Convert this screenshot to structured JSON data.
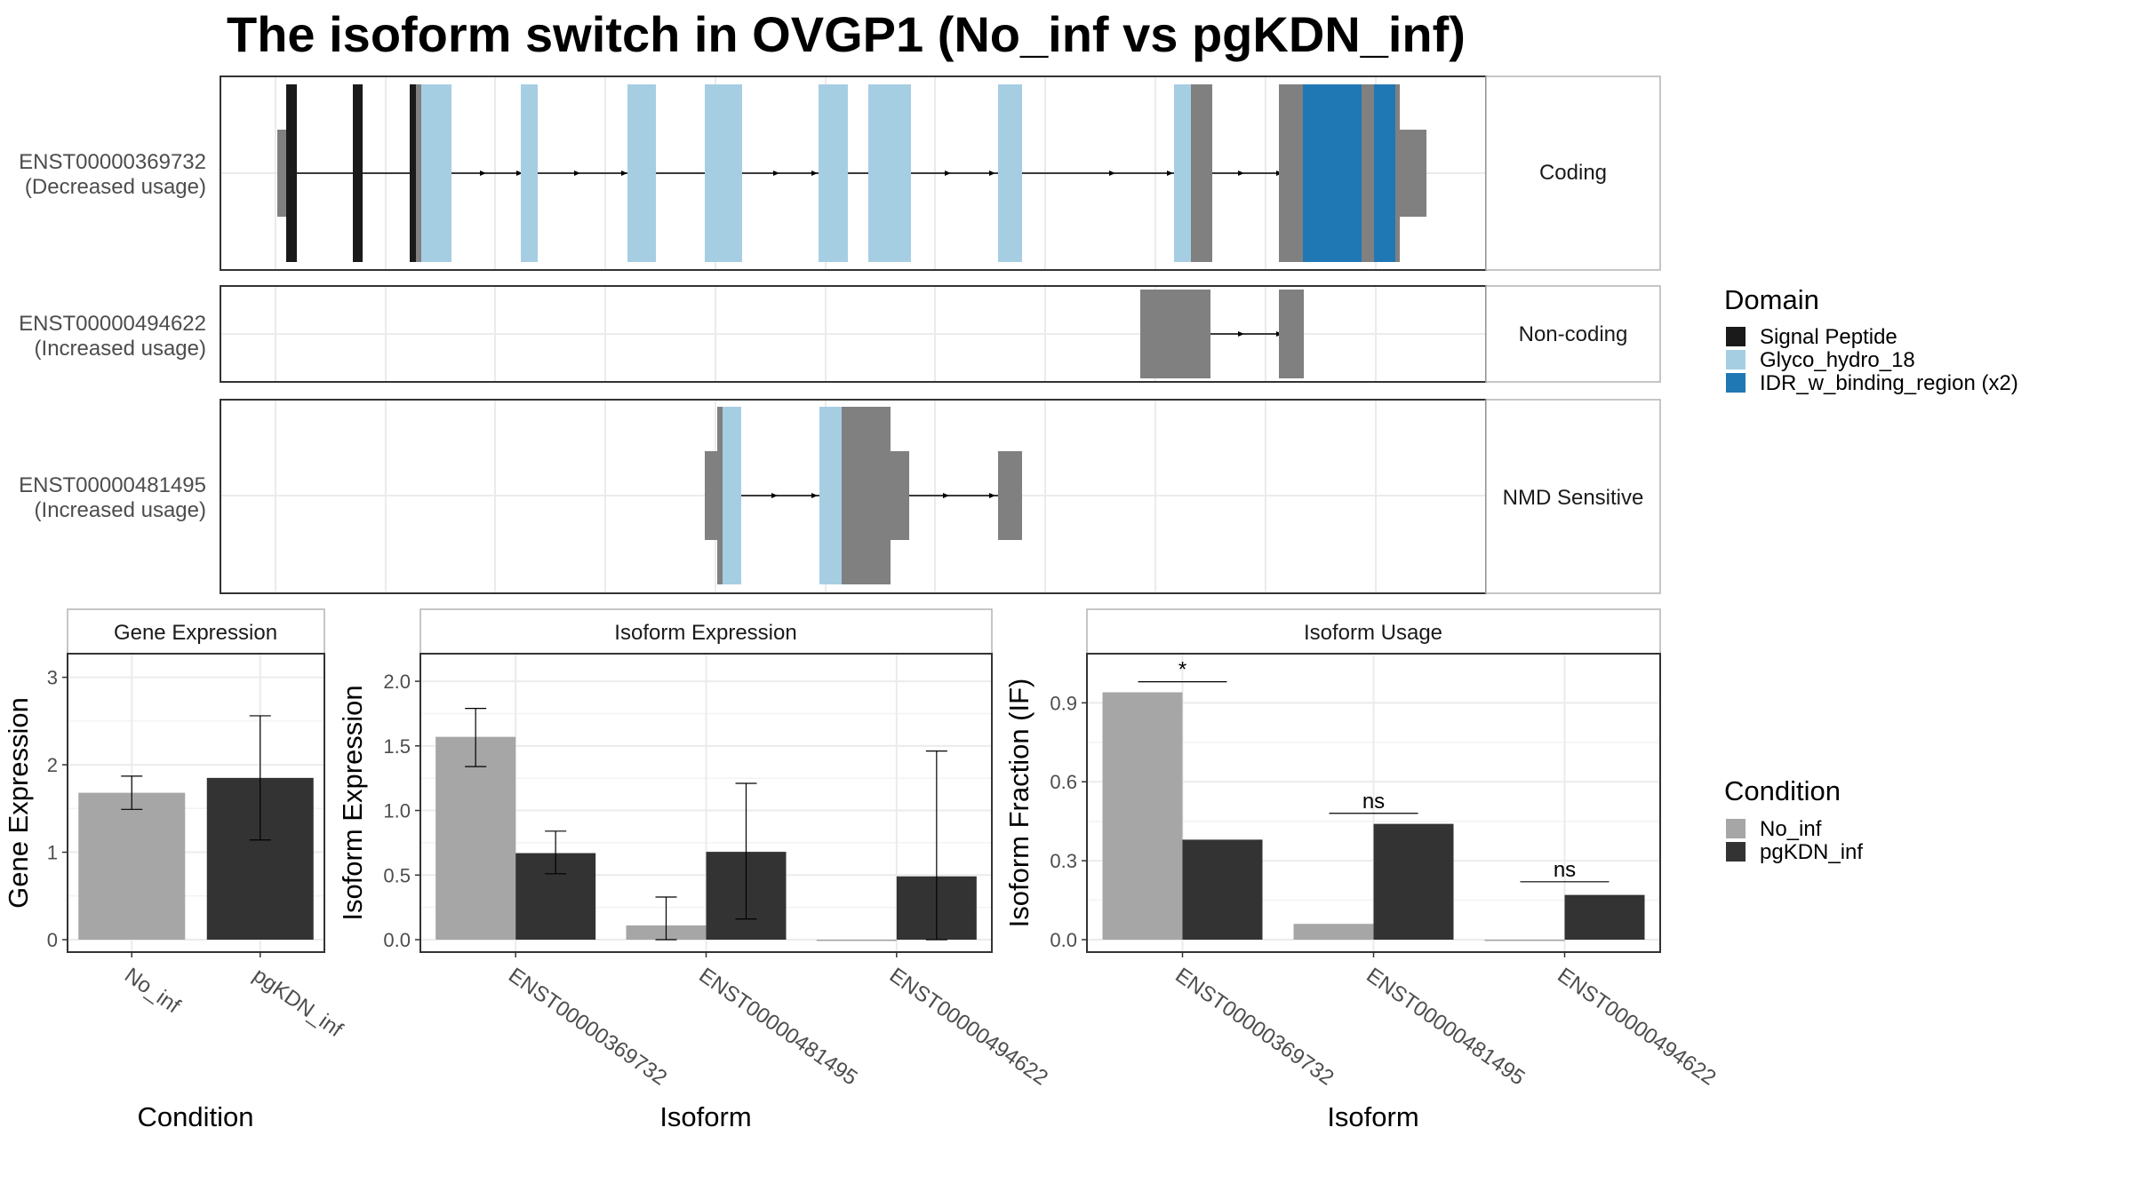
{
  "title": "The isoform switch in OVGP1 (No_inf vs pgKDN_inf)",
  "colors": {
    "signal_peptide": "#1a1a1a",
    "glyco_hydro_18": "#a6cee3",
    "idr_w_binding_region": "#1f78b4",
    "utr_gray": "#808080",
    "no_inf": "#a6a6a6",
    "pgKDN_inf": "#333333",
    "grid": "#ebebeb"
  },
  "structure": {
    "tracks": [
      {
        "id": "ENST00000369732",
        "usage": "(Decreased usage)",
        "facet": "Coding"
      },
      {
        "id": "ENST00000494622",
        "usage": "(Increased usage)",
        "facet": "Non-coding"
      },
      {
        "id": "ENST00000481495",
        "usage": "(Increased usage)",
        "facet": "NMD Sensitive"
      }
    ],
    "legend_title": "Domain",
    "legend": [
      {
        "label": "Signal Peptide",
        "color_key": "signal_peptide"
      },
      {
        "label": "Glyco_hydro_18",
        "color_key": "glyco_hydro_18"
      },
      {
        "label": "IDR_w_binding_region (x2)",
        "color_key": "idr_w_binding_region"
      }
    ]
  },
  "condition_legend": {
    "title": "Condition",
    "items": [
      {
        "label": "No_inf",
        "color_key": "no_inf"
      },
      {
        "label": "pgKDN_inf",
        "color_key": "pgKDN_inf"
      }
    ]
  },
  "chart_data": [
    {
      "type": "bar",
      "title": "Gene Expression",
      "xlabel": "Condition",
      "ylabel": "Gene Expression",
      "ylim": [
        0,
        3.25
      ],
      "yticks": [
        0,
        1,
        2,
        3
      ],
      "categories": [
        "No_inf",
        "pgKDN_inf"
      ],
      "series": [
        {
          "name": "No_inf",
          "values": [
            1.68,
            null
          ],
          "err_low": [
            1.49,
            null
          ],
          "err_high": [
            1.87,
            null
          ]
        },
        {
          "name": "pgKDN_inf",
          "values": [
            null,
            1.85
          ],
          "err_low": [
            null,
            1.14
          ],
          "err_high": [
            null,
            2.56
          ]
        }
      ]
    },
    {
      "type": "bar",
      "title": "Isoform Expression",
      "xlabel": "Isoform",
      "ylabel": "Isoform Expression",
      "ylim": [
        0,
        2.2
      ],
      "yticks": [
        0.0,
        0.5,
        1.0,
        1.5,
        2.0
      ],
      "categories": [
        "ENST00000369732",
        "ENST00000481495",
        "ENST00000494622"
      ],
      "series": [
        {
          "name": "No_inf",
          "values": [
            1.57,
            0.11,
            0.0
          ],
          "err_low": [
            1.34,
            0.0,
            0.0
          ],
          "err_high": [
            1.79,
            0.33,
            0.0
          ]
        },
        {
          "name": "pgKDN_inf",
          "values": [
            0.67,
            0.68,
            0.49
          ],
          "err_low": [
            0.51,
            0.16,
            0.0
          ],
          "err_high": [
            0.84,
            1.21,
            1.46
          ]
        }
      ]
    },
    {
      "type": "bar",
      "title": "Isoform Usage",
      "xlabel": "Isoform",
      "ylabel": "Isoform Fraction (IF)",
      "ylim": [
        0,
        1.08
      ],
      "yticks": [
        0.0,
        0.3,
        0.6,
        0.9
      ],
      "categories": [
        "ENST00000369732",
        "ENST00000481495",
        "ENST00000494622"
      ],
      "series": [
        {
          "name": "No_inf",
          "values": [
            0.94,
            0.06,
            0.0
          ]
        },
        {
          "name": "pgKDN_inf",
          "values": [
            0.38,
            0.44,
            0.17
          ]
        }
      ],
      "significance": [
        {
          "category": "ENST00000369732",
          "label": "*",
          "y": 0.98
        },
        {
          "category": "ENST00000481495",
          "label": "ns",
          "y": 0.48
        },
        {
          "category": "ENST00000494622",
          "label": "ns",
          "y": 0.22
        }
      ]
    }
  ]
}
